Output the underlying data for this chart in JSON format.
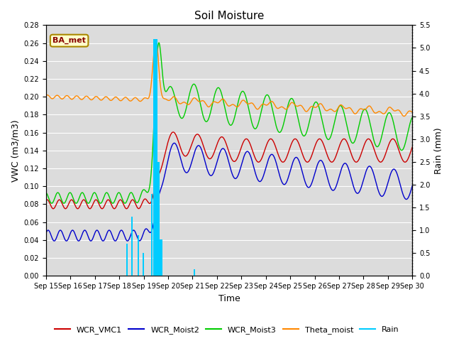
{
  "title": "Soil Moisture",
  "ylabel_left": "VWC (m3/m3)",
  "ylabel_right": "Rain (mm)",
  "xlabel": "Time",
  "annotation": "BA_met",
  "ylim_left": [
    0.0,
    0.28
  ],
  "ylim_right": [
    0.0,
    5.5
  ],
  "yticks_left": [
    0.0,
    0.02,
    0.04,
    0.06,
    0.08,
    0.1,
    0.12,
    0.14,
    0.16,
    0.18,
    0.2,
    0.22,
    0.24,
    0.26,
    0.28
  ],
  "yticks_right": [
    0.0,
    0.5,
    1.0,
    1.5,
    2.0,
    2.5,
    3.0,
    3.5,
    4.0,
    4.5,
    5.0,
    5.5
  ],
  "xtick_labels": [
    "Sep 15",
    "Sep 16",
    "Sep 17",
    "Sep 18",
    "Sep 19",
    "Sep 20",
    "Sep 21",
    "Sep 22",
    "Sep 23",
    "Sep 24",
    "Sep 25",
    "Sep 26",
    "Sep 27",
    "Sep 28",
    "Sep 29",
    "Sep 30"
  ],
  "colors": {
    "WCR_VMC1": "#cc0000",
    "WCR_Moist2": "#0000cc",
    "WCR_Moist3": "#00cc00",
    "Theta_moist": "#ff8800",
    "Rain": "#00ccff",
    "background": "#dcdcdc"
  },
  "legend_labels": [
    "WCR_VMC1",
    "WCR_Moist2",
    "WCR_Moist3",
    "Theta_moist",
    "Rain"
  ]
}
